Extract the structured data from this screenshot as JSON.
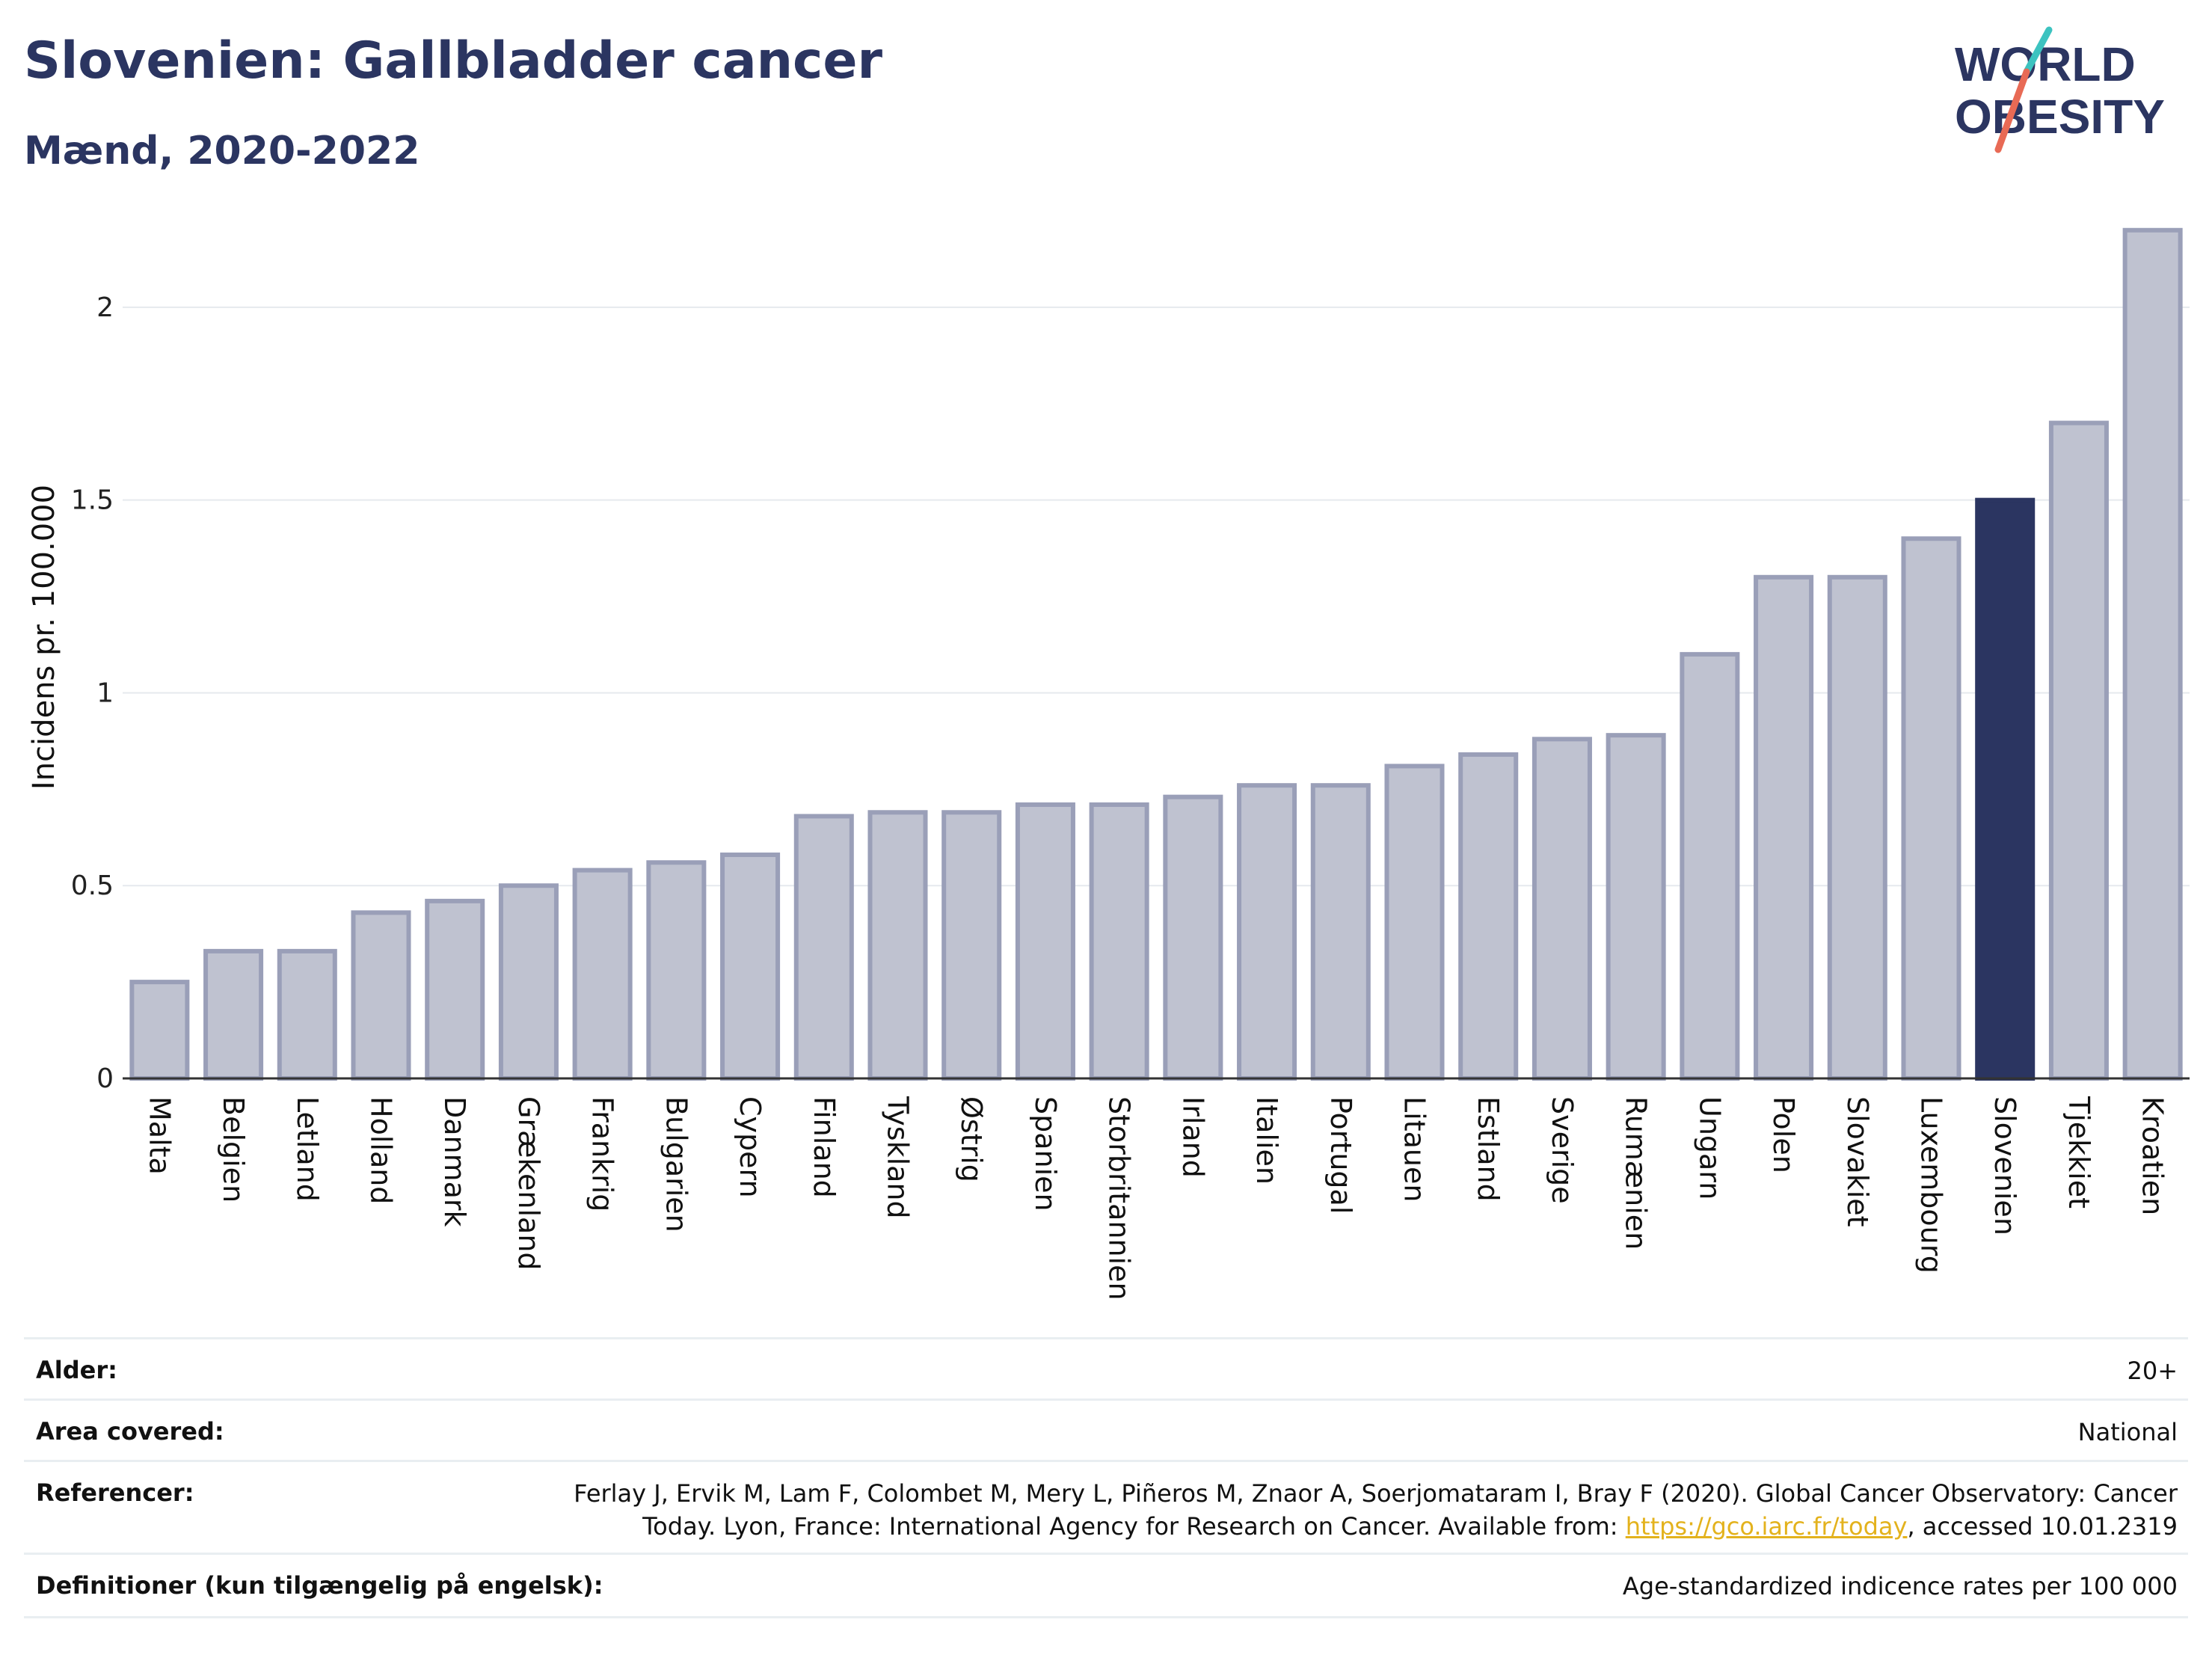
{
  "header": {
    "title": "Slovenien: Gallbladder cancer",
    "subtitle": "Mænd, 2020-2022"
  },
  "logo": {
    "line1": "WORLD",
    "line2": "OBESITY",
    "accent_colors": [
      "#3cc3c0",
      "#e86a55"
    ],
    "text_color": "#2b3561"
  },
  "colors": {
    "bar_default": "#bfc2d0",
    "bar_default_border": "#9a9fb8",
    "bar_highlight": "#2b3561",
    "gridline": "#e6e9ee",
    "axis": "#333333"
  },
  "chart_data": {
    "type": "bar",
    "title": "Slovenien: Gallbladder cancer",
    "subtitle": "Mænd, 2020-2022",
    "xlabel": "",
    "ylabel": "Incidens pr. 100.000",
    "ylim": [
      0,
      2.25
    ],
    "yticks": [
      0,
      0.5,
      1,
      1.5,
      2
    ],
    "ytick_labels": [
      "0",
      "0.5",
      "1",
      "1.5",
      "2"
    ],
    "grid": true,
    "highlight": "Slovenien",
    "categories": [
      "Malta",
      "Belgien",
      "Letland",
      "Holland",
      "Danmark",
      "Grækenland",
      "Frankrig",
      "Bulgarien",
      "Cypern",
      "Finland",
      "Tyskland",
      "Østrig",
      "Spanien",
      "Storbritannien",
      "Irland",
      "Italien",
      "Portugal",
      "Litauen",
      "Estland",
      "Sverige",
      "Rumænien",
      "Ungarn",
      "Polen",
      "Slovakiet",
      "Luxembourg",
      "Slovenien",
      "Tjekkiet",
      "Kroatien"
    ],
    "values": [
      0.25,
      0.33,
      0.33,
      0.43,
      0.46,
      0.5,
      0.54,
      0.56,
      0.58,
      0.68,
      0.69,
      0.69,
      0.71,
      0.71,
      0.73,
      0.76,
      0.76,
      0.81,
      0.84,
      0.88,
      0.89,
      1.1,
      1.3,
      1.3,
      1.4,
      1.5,
      1.7,
      2.2
    ]
  },
  "meta": {
    "rows": [
      {
        "key": "Alder:",
        "value": "20+"
      },
      {
        "key": "Area covered:",
        "value": "National"
      },
      {
        "key": "Referencer:",
        "value_line1": "Ferlay J, Ervik M, Lam F, Colombet M, Mery L, Piñeros M, Znaor A, Soerjomataram I, Bray F (2020). Global Cancer Observatory: Cancer",
        "value_line2_pre": "Today. Lyon, France: International Agency for Research on Cancer. Available from: ",
        "value_link": "https://gco.iarc.fr/today",
        "value_line2_post": ", accessed 10.01.2319"
      },
      {
        "key": "Definitioner (kun tilgængelig på engelsk):",
        "value": "Age-standardized indicence rates per 100 000"
      }
    ]
  }
}
